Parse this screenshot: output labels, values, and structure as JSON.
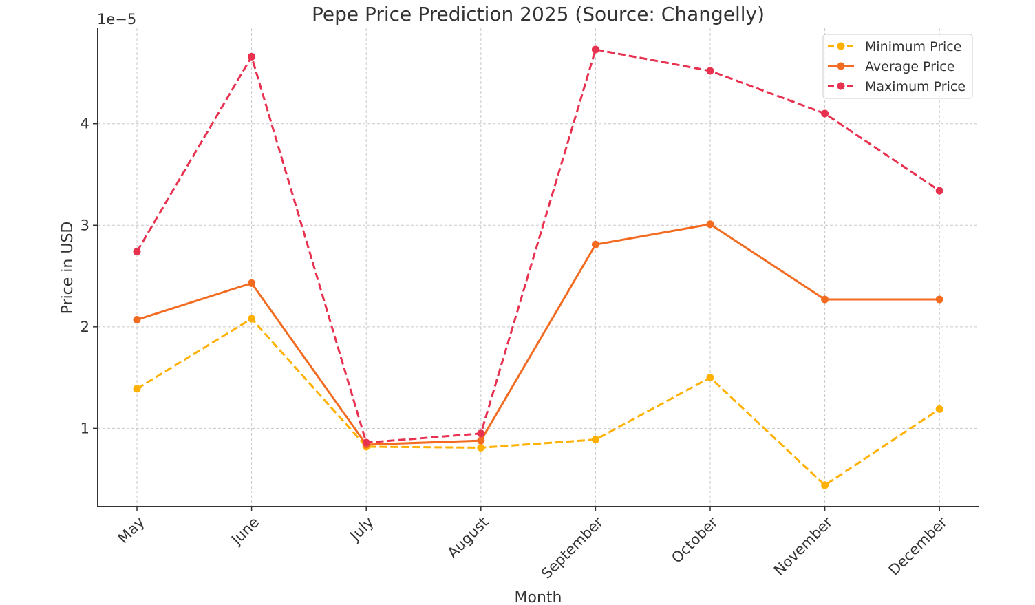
{
  "chart_data": {
    "type": "line",
    "title": "Pepe Price Prediction 2025 (Source: Changelly)",
    "xlabel": "Month",
    "ylabel": "Price in USD",
    "y_offset_label": "1e−5",
    "categories": [
      "May",
      "June",
      "July",
      "August",
      "September",
      "October",
      "November",
      "December"
    ],
    "y_scale": 1e-05,
    "ylim": [
      2.3e-06,
      4.94e-05
    ],
    "yticks": [
      1e-05,
      2e-05,
      3e-05,
      4e-05
    ],
    "ytick_labels": [
      "1",
      "2",
      "3",
      "4"
    ],
    "grid": true,
    "legend_position": "top-right",
    "series": [
      {
        "name": "Minimum Price",
        "style": "dashed",
        "color": "#FFB000",
        "values": [
          1.39e-05,
          2.08e-05,
          8.2e-06,
          8.1e-06,
          8.9e-06,
          1.5e-05,
          4.4e-06,
          1.19e-05
        ]
      },
      {
        "name": "Average Price",
        "style": "solid",
        "color": "#F26B21",
        "values": [
          2.07e-05,
          2.43e-05,
          8.4e-06,
          8.8e-06,
          2.81e-05,
          3.01e-05,
          2.27e-05,
          2.27e-05
        ]
      },
      {
        "name": "Maximum Price",
        "style": "dashed",
        "color": "#E8304F",
        "values": [
          2.74e-05,
          4.66e-05,
          8.6e-06,
          9.5e-06,
          4.73e-05,
          4.52e-05,
          4.1e-05,
          3.34e-05
        ]
      }
    ]
  }
}
